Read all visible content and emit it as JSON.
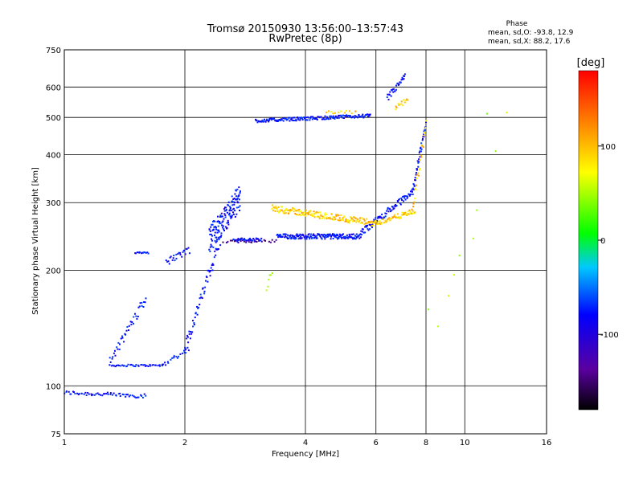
{
  "chart_data": {
    "type": "scatter",
    "title": "Tromsø 20150930 13:56:00–13:57:43",
    "subtitle": "RwPretec (8p)",
    "xlabel": "Frequency [MHz]",
    "ylabel": "Stationary phase Virtual Height [km]",
    "x_scale": "log",
    "y_scale": "log",
    "xlim": [
      1,
      16
    ],
    "ylim": [
      75,
      750
    ],
    "x_ticks": [
      1,
      2,
      4,
      6,
      8,
      10,
      16
    ],
    "x_tick_labels": [
      "1",
      "2",
      "4",
      "6",
      "8",
      "10",
      "16"
    ],
    "y_ticks": [
      75,
      100,
      200,
      300,
      400,
      500,
      600,
      750
    ],
    "y_tick_labels": [
      "75",
      "100",
      "200",
      "300",
      "400",
      "500",
      "600",
      "750"
    ],
    "grid": true,
    "stats": {
      "heading": "Phase",
      "line_o": "mean, sd,O:  -93.8, 12.9",
      "line_x": "mean, sd,X:   88.2, 17.6"
    },
    "colorbar": {
      "unit_label": "[deg]",
      "range": [
        -180,
        180
      ],
      "ticks": [
        100,
        0,
        -100
      ],
      "tick_labels": [
        "100",
        "0",
        "-100"
      ]
    },
    "series": [
      {
        "phase": -95,
        "segments": [
          {
            "x": [
              1.0,
              1.6
            ],
            "y": [
              96,
              94
            ],
            "n": 60,
            "spread": 0.012
          },
          {
            "x": [
              1.3,
              1.75
            ],
            "y": [
              113,
              113
            ],
            "n": 40,
            "spread": 0.006
          },
          {
            "x": [
              1.75,
              2.05
            ],
            "y": [
              113,
              125
            ],
            "n": 20,
            "spread": 0.015
          },
          {
            "x": [
              2.0,
              2.45
            ],
            "y": [
              125,
              240
            ],
            "n": 60,
            "spread": 0.04
          },
          {
            "x": [
              2.3,
              2.75
            ],
            "y": [
              240,
              310
            ],
            "n": 140,
            "spread": 0.08
          },
          {
            "x": [
              2.65,
              3.1
            ],
            "y": [
              240,
              240
            ],
            "n": 40,
            "spread": 0.01
          },
          {
            "x": [
              3.4,
              5.5
            ],
            "y": [
              245,
              245
            ],
            "n": 180,
            "spread": 0.015
          },
          {
            "x": [
              5.5,
              7.4
            ],
            "y": [
              250,
              320
            ],
            "n": 80,
            "spread": 0.02
          },
          {
            "x": [
              7.4,
              8.0
            ],
            "y": [
              320,
              480
            ],
            "n": 40,
            "spread": 0.03
          },
          {
            "x": [
              3.0,
              5.8
            ],
            "y": [
              490,
              505
            ],
            "n": 160,
            "spread": 0.01
          },
          {
            "x": [
              6.4,
              7.1
            ],
            "y": [
              560,
              640
            ],
            "n": 30,
            "spread": 0.02
          },
          {
            "x": [
              1.3,
              1.6
            ],
            "y": [
              115,
              170
            ],
            "n": 40,
            "spread": 0.03
          },
          {
            "x": [
              1.8,
              2.05
            ],
            "y": [
              210,
              225
            ],
            "n": 25,
            "spread": 0.02
          },
          {
            "x": [
              1.5,
              1.62
            ],
            "y": [
              222,
              222
            ],
            "n": 14,
            "spread": 0.004
          }
        ]
      },
      {
        "phase": 115,
        "segments": [
          {
            "x": [
              3.3,
              6.0
            ],
            "y": [
              290,
              265
            ],
            "n": 180,
            "spread": 0.02
          },
          {
            "x": [
              6.0,
              7.5
            ],
            "y": [
              265,
              285
            ],
            "n": 60,
            "spread": 0.015
          },
          {
            "x": [
              7.4,
              8.0
            ],
            "y": [
              285,
              480
            ],
            "n": 25,
            "spread": 0.03
          },
          {
            "x": [
              6.7,
              7.2
            ],
            "y": [
              530,
              555
            ],
            "n": 14,
            "spread": 0.015
          },
          {
            "x": [
              4.5,
              5.3
            ],
            "y": [
              515,
              515
            ],
            "n": 12,
            "spread": 0.01
          }
        ]
      },
      {
        "phase": 60,
        "segments": [
          {
            "x": [
              3.2,
              3.3
            ],
            "y": [
              180,
              200
            ],
            "n": 6,
            "spread": 0.02
          },
          {
            "x": [
              8.2,
              12.5
            ],
            "y": [
              150,
              550
            ],
            "n": 10,
            "spread": 0.25
          }
        ]
      },
      {
        "phase": -140,
        "segments": [
          {
            "x": [
              2.5,
              3.4
            ],
            "y": [
              238,
              238
            ],
            "n": 25,
            "spread": 0.01
          }
        ]
      }
    ]
  }
}
